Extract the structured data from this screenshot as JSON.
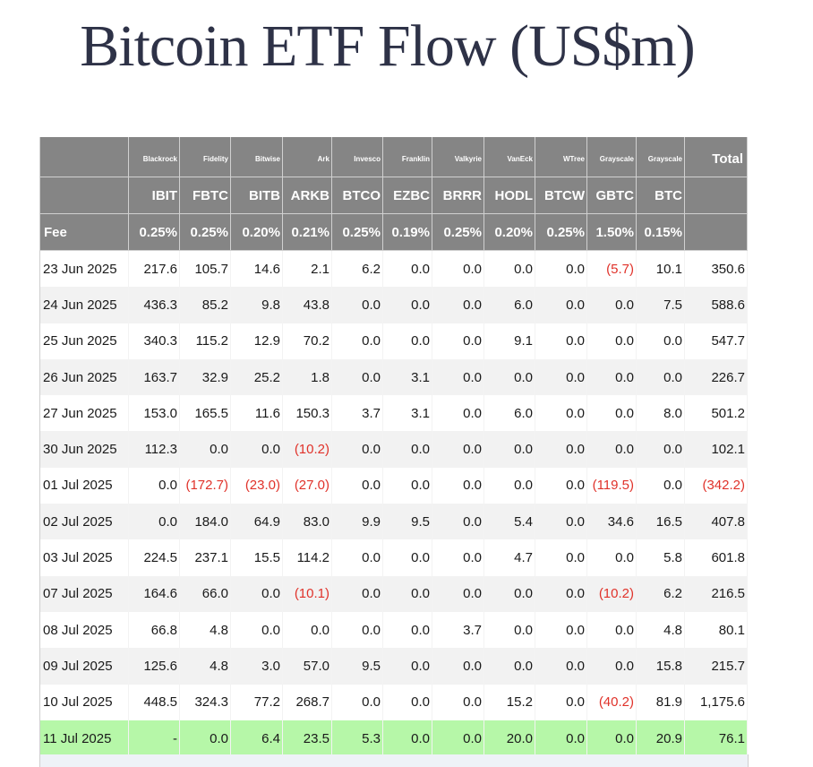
{
  "title": "Bitcoin ETF Flow (US$m)",
  "header": {
    "issuers": [
      "",
      "Blackrock",
      "Fidelity",
      "Bitwise",
      "Ark",
      "Invesco",
      "Franklin",
      "Valkyrie",
      "VanEck",
      "WTree",
      "Grayscale",
      "Grayscale",
      "Total"
    ],
    "tickers": [
      "",
      "IBIT",
      "FBTC",
      "BITB",
      "ARKB",
      "BTCO",
      "EZBC",
      "BRRR",
      "HODL",
      "BTCW",
      "GBTC",
      "BTC",
      ""
    ],
    "fees": [
      "Fee",
      "0.25%",
      "0.25%",
      "0.20%",
      "0.21%",
      "0.25%",
      "0.19%",
      "0.25%",
      "0.20%",
      "0.25%",
      "1.50%",
      "0.15%",
      ""
    ]
  },
  "rows": [
    {
      "date": "23 Jun 2025",
      "values": [
        "217.6",
        "105.7",
        "14.6",
        "2.1",
        "6.2",
        "0.0",
        "0.0",
        "0.0",
        "0.0",
        "(5.7)",
        "10.1",
        "350.6"
      ]
    },
    {
      "date": "24 Jun 2025",
      "values": [
        "436.3",
        "85.2",
        "9.8",
        "43.8",
        "0.0",
        "0.0",
        "0.0",
        "6.0",
        "0.0",
        "0.0",
        "7.5",
        "588.6"
      ]
    },
    {
      "date": "25 Jun 2025",
      "values": [
        "340.3",
        "115.2",
        "12.9",
        "70.2",
        "0.0",
        "0.0",
        "0.0",
        "9.1",
        "0.0",
        "0.0",
        "0.0",
        "547.7"
      ]
    },
    {
      "date": "26 Jun 2025",
      "values": [
        "163.7",
        "32.9",
        "25.2",
        "1.8",
        "0.0",
        "3.1",
        "0.0",
        "0.0",
        "0.0",
        "0.0",
        "0.0",
        "226.7"
      ]
    },
    {
      "date": "27 Jun 2025",
      "values": [
        "153.0",
        "165.5",
        "11.6",
        "150.3",
        "3.7",
        "3.1",
        "0.0",
        "6.0",
        "0.0",
        "0.0",
        "8.0",
        "501.2"
      ]
    },
    {
      "date": "30 Jun 2025",
      "values": [
        "112.3",
        "0.0",
        "0.0",
        "(10.2)",
        "0.0",
        "0.0",
        "0.0",
        "0.0",
        "0.0",
        "0.0",
        "0.0",
        "102.1"
      ]
    },
    {
      "date": "01 Jul 2025",
      "values": [
        "0.0",
        "(172.7)",
        "(23.0)",
        "(27.0)",
        "0.0",
        "0.0",
        "0.0",
        "0.0",
        "0.0",
        "(119.5)",
        "0.0",
        "(342.2)"
      ]
    },
    {
      "date": "02 Jul 2025",
      "values": [
        "0.0",
        "184.0",
        "64.9",
        "83.0",
        "9.9",
        "9.5",
        "0.0",
        "5.4",
        "0.0",
        "34.6",
        "16.5",
        "407.8"
      ]
    },
    {
      "date": "03 Jul 2025",
      "values": [
        "224.5",
        "237.1",
        "15.5",
        "114.2",
        "0.0",
        "0.0",
        "0.0",
        "4.7",
        "0.0",
        "0.0",
        "5.8",
        "601.8"
      ]
    },
    {
      "date": "07 Jul 2025",
      "values": [
        "164.6",
        "66.0",
        "0.0",
        "(10.1)",
        "0.0",
        "0.0",
        "0.0",
        "0.0",
        "0.0",
        "(10.2)",
        "6.2",
        "216.5"
      ]
    },
    {
      "date": "08 Jul 2025",
      "values": [
        "66.8",
        "4.8",
        "0.0",
        "0.0",
        "0.0",
        "0.0",
        "3.7",
        "0.0",
        "0.0",
        "0.0",
        "4.8",
        "80.1"
      ]
    },
    {
      "date": "09 Jul 2025",
      "values": [
        "125.6",
        "4.8",
        "3.0",
        "57.0",
        "9.5",
        "0.0",
        "0.0",
        "0.0",
        "0.0",
        "0.0",
        "15.8",
        "215.7"
      ]
    },
    {
      "date": "10 Jul 2025",
      "values": [
        "448.5",
        "324.3",
        "77.2",
        "268.7",
        "0.0",
        "0.0",
        "0.0",
        "15.2",
        "0.0",
        "(40.2)",
        "81.9",
        "1,175.6"
      ]
    },
    {
      "date": "11 Jul 2025",
      "values": [
        "-",
        "0.0",
        "6.4",
        "23.5",
        "5.3",
        "0.0",
        "0.0",
        "20.0",
        "0.0",
        "0.0",
        "20.9",
        "76.1"
      ],
      "highlight": true
    }
  ],
  "colors": {
    "header_bg": "#858585",
    "negative": "#e0322a",
    "latest_row": "#b6f7a8",
    "title": "#2e3247"
  }
}
